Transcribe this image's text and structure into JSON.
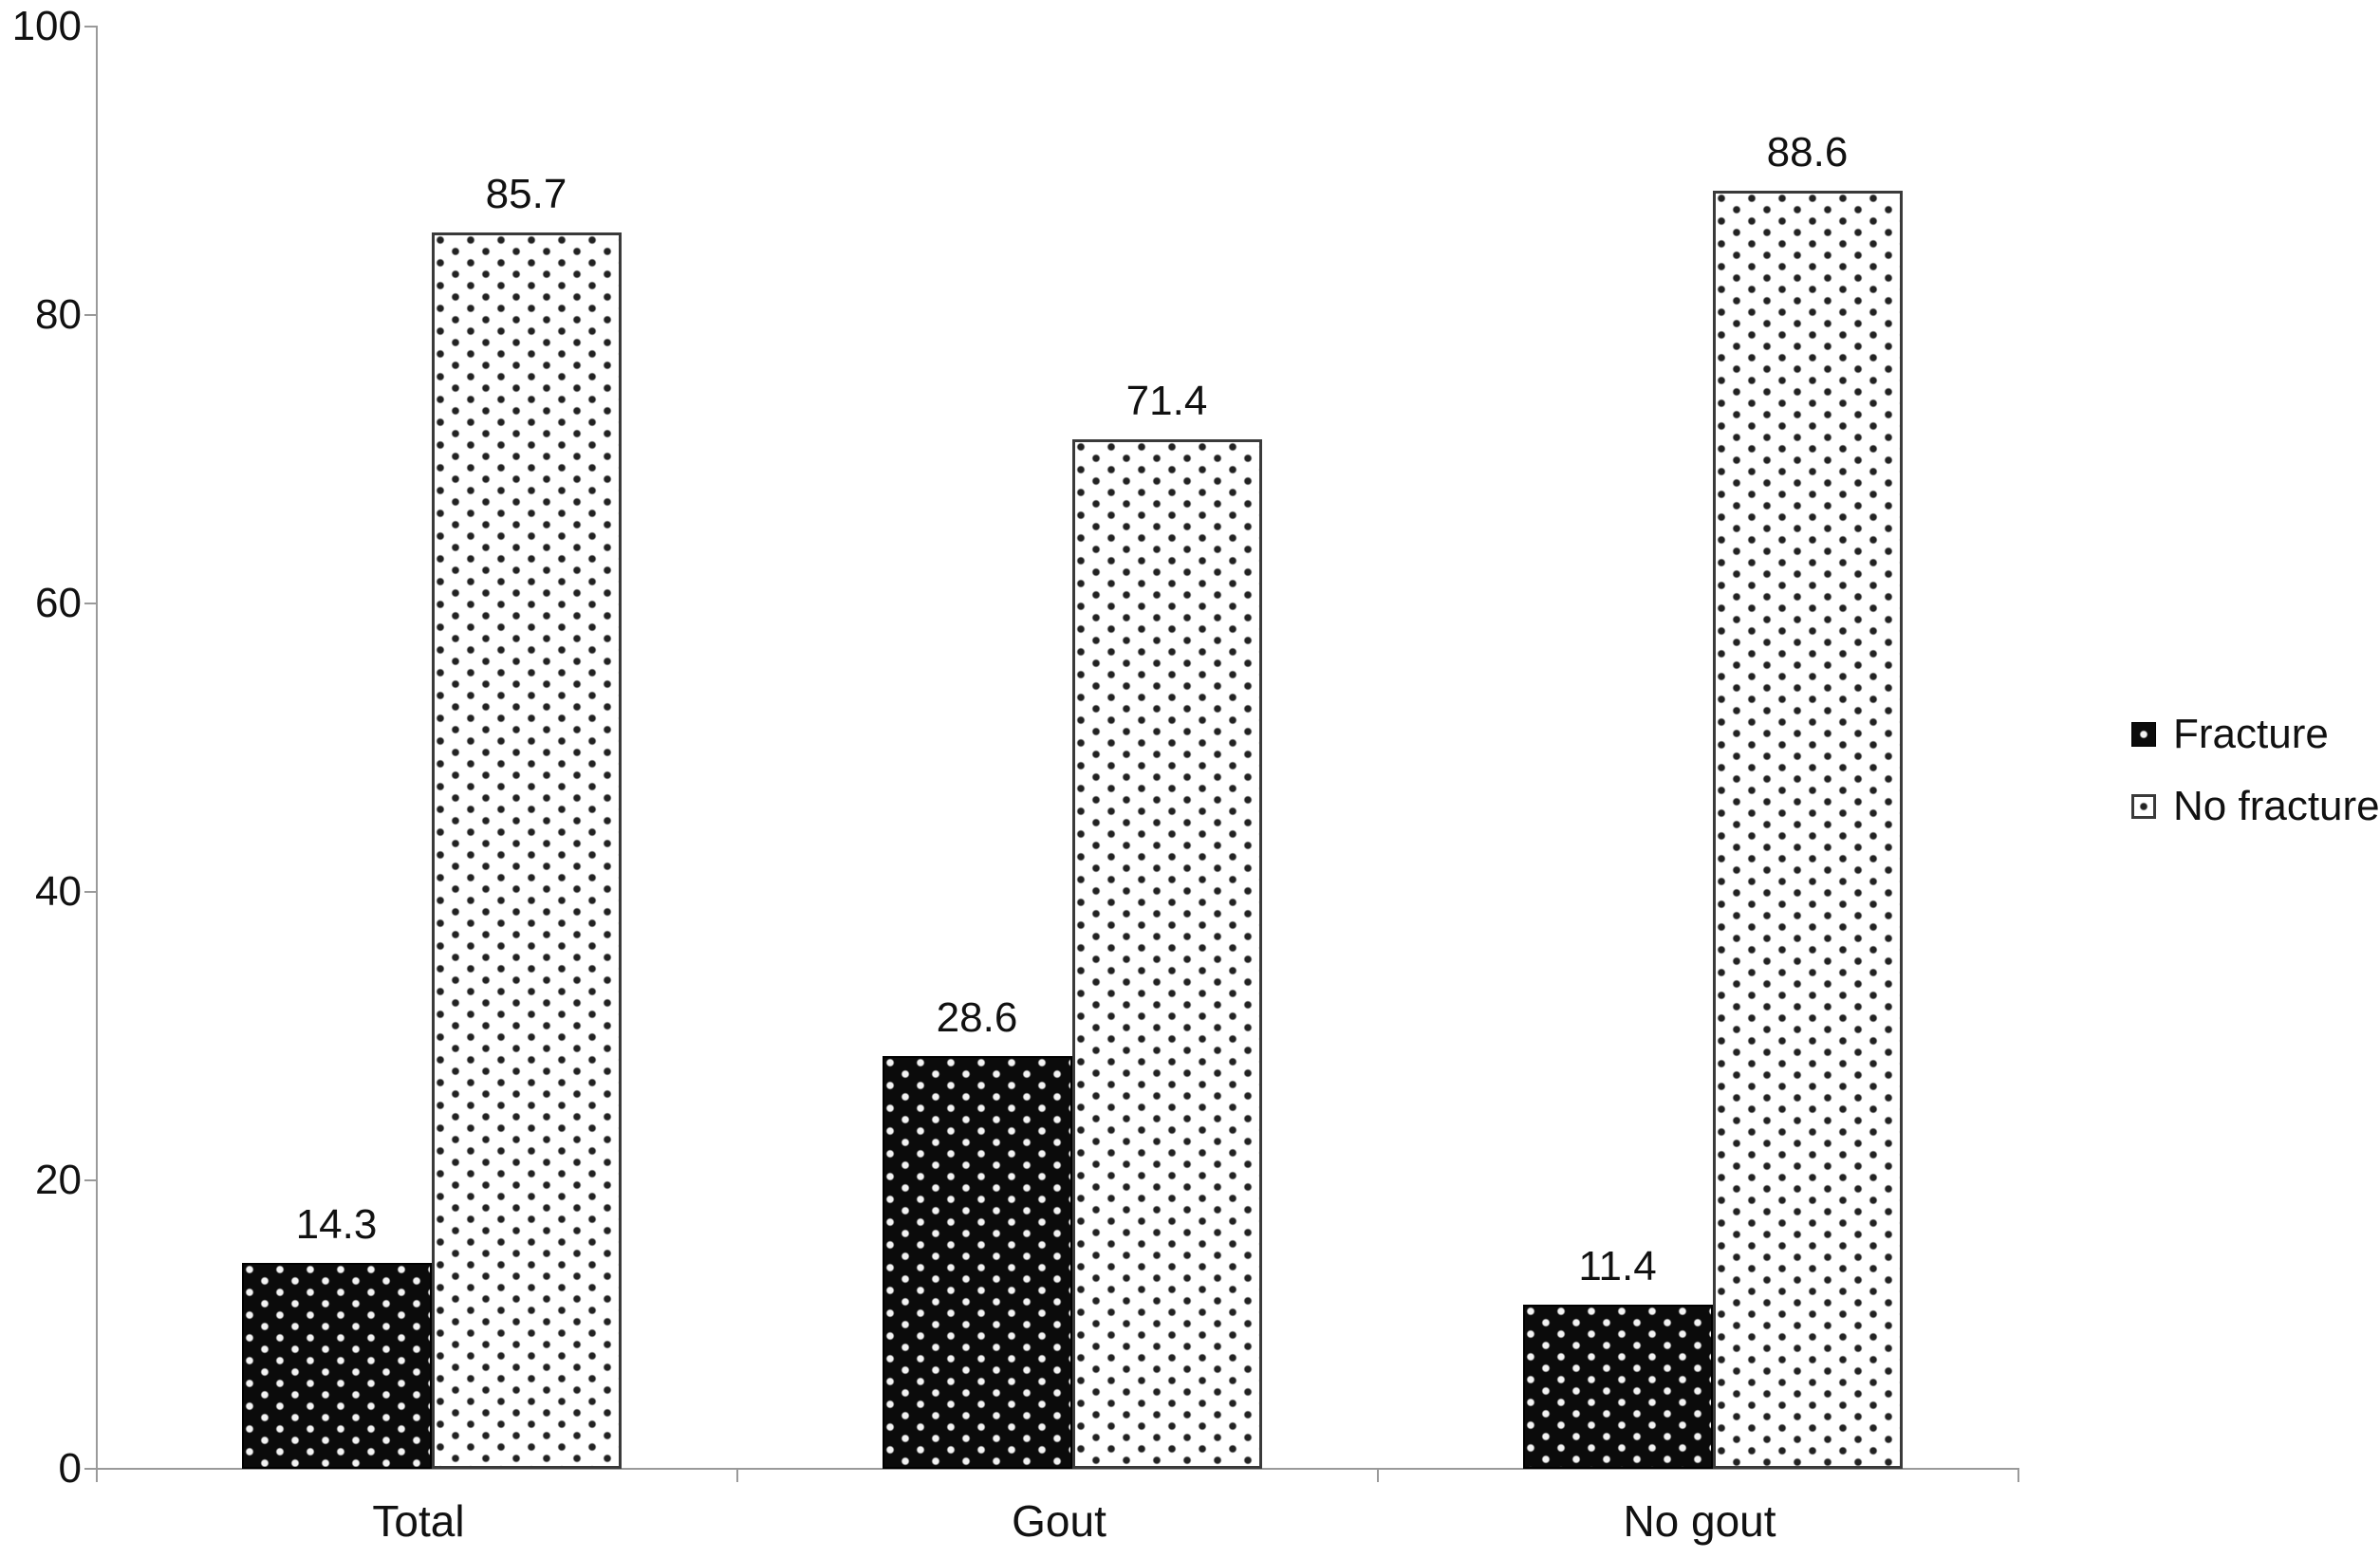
{
  "chart_data": {
    "type": "bar",
    "categories": [
      "Total",
      "Gout",
      "No gout"
    ],
    "series": [
      {
        "name": "Fracture",
        "values": [
          14.3,
          28.6,
          11.4
        ],
        "pattern": "white-dots-on-black"
      },
      {
        "name": "No fracture",
        "values": [
          85.7,
          71.4,
          88.6
        ],
        "pattern": "black-dots-on-white"
      }
    ],
    "title": "",
    "xlabel": "",
    "ylabel": "",
    "ylim": [
      0,
      100
    ],
    "yticks": [
      0,
      20,
      40,
      60,
      80,
      100
    ],
    "grid": false,
    "legend_position": "right",
    "data_labels": true,
    "data_label_format": "one-decimal"
  },
  "colors": {
    "fracture_fill": "#0b0b0b",
    "no_fracture_fill": "#ffffff",
    "axis": "#9a9a9a",
    "text": "#111111",
    "background": "#ffffff"
  }
}
